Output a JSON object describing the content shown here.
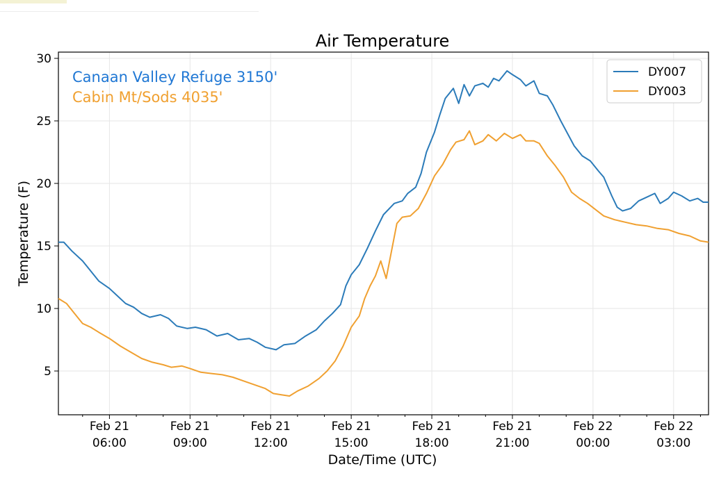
{
  "chart_data": {
    "type": "line",
    "title": "Air Temperature",
    "xlabel": "Date/Time (UTC)",
    "ylabel": "Temperature (F)",
    "ylim": [
      1.5,
      30.5
    ],
    "xlim_hours": [
      4.1,
      28.3
    ],
    "x_unit": "hours since Feb 21 00:00 UTC",
    "y_ticks": [
      5,
      10,
      15,
      20,
      25,
      30
    ],
    "x_ticks": [
      {
        "h": 6,
        "date": "Feb 21",
        "time": "06:00"
      },
      {
        "h": 9,
        "date": "Feb 21",
        "time": "09:00"
      },
      {
        "h": 12,
        "date": "Feb 21",
        "time": "12:00"
      },
      {
        "h": 15,
        "date": "Feb 21",
        "time": "15:00"
      },
      {
        "h": 18,
        "date": "Feb 21",
        "time": "18:00"
      },
      {
        "h": 21,
        "date": "Feb 21",
        "time": "21:00"
      },
      {
        "h": 24,
        "date": "Feb 22",
        "time": "00:00"
      },
      {
        "h": 27,
        "date": "Feb 22",
        "time": "03:00"
      }
    ],
    "minor_tick_step_hours": 1,
    "grid": true,
    "legend_position": "top-right",
    "annotations": [
      {
        "text": "Canaan Valley Refuge 3150'",
        "color": "#1f77d4"
      },
      {
        "text": "Cabin Mt/Sods 4035'",
        "color": "#f0a030"
      }
    ],
    "series": [
      {
        "name": "DY007",
        "color": "#2b7bb9",
        "points": [
          [
            4.1,
            15.3
          ],
          [
            4.3,
            15.3
          ],
          [
            4.6,
            14.6
          ],
          [
            5.0,
            13.8
          ],
          [
            5.3,
            13.0
          ],
          [
            5.6,
            12.2
          ],
          [
            6.0,
            11.6
          ],
          [
            6.3,
            11.0
          ],
          [
            6.6,
            10.4
          ],
          [
            6.9,
            10.1
          ],
          [
            7.2,
            9.6
          ],
          [
            7.5,
            9.3
          ],
          [
            7.9,
            9.5
          ],
          [
            8.2,
            9.2
          ],
          [
            8.5,
            8.6
          ],
          [
            8.9,
            8.4
          ],
          [
            9.2,
            8.5
          ],
          [
            9.6,
            8.3
          ],
          [
            10.0,
            7.8
          ],
          [
            10.4,
            8.0
          ],
          [
            10.8,
            7.5
          ],
          [
            11.2,
            7.6
          ],
          [
            11.5,
            7.3
          ],
          [
            11.8,
            6.9
          ],
          [
            12.2,
            6.7
          ],
          [
            12.5,
            7.1
          ],
          [
            12.9,
            7.2
          ],
          [
            13.3,
            7.8
          ],
          [
            13.7,
            8.3
          ],
          [
            14.0,
            9.0
          ],
          [
            14.3,
            9.6
          ],
          [
            14.6,
            10.3
          ],
          [
            14.8,
            11.8
          ],
          [
            15.0,
            12.7
          ],
          [
            15.3,
            13.5
          ],
          [
            15.6,
            14.8
          ],
          [
            15.9,
            16.2
          ],
          [
            16.2,
            17.5
          ],
          [
            16.6,
            18.4
          ],
          [
            16.9,
            18.6
          ],
          [
            17.1,
            19.2
          ],
          [
            17.4,
            19.7
          ],
          [
            17.6,
            20.8
          ],
          [
            17.8,
            22.5
          ],
          [
            18.1,
            24.1
          ],
          [
            18.3,
            25.5
          ],
          [
            18.5,
            26.8
          ],
          [
            18.8,
            27.6
          ],
          [
            19.0,
            26.4
          ],
          [
            19.2,
            27.9
          ],
          [
            19.4,
            27.0
          ],
          [
            19.6,
            27.8
          ],
          [
            19.9,
            28.0
          ],
          [
            20.1,
            27.7
          ],
          [
            20.3,
            28.4
          ],
          [
            20.5,
            28.2
          ],
          [
            20.8,
            29.0
          ],
          [
            21.0,
            28.7
          ],
          [
            21.3,
            28.3
          ],
          [
            21.5,
            27.8
          ],
          [
            21.8,
            28.2
          ],
          [
            22.0,
            27.2
          ],
          [
            22.3,
            27.0
          ],
          [
            22.5,
            26.3
          ],
          [
            22.8,
            25.0
          ],
          [
            23.1,
            23.8
          ],
          [
            23.3,
            23.0
          ],
          [
            23.6,
            22.2
          ],
          [
            23.9,
            21.8
          ],
          [
            24.2,
            21.0
          ],
          [
            24.4,
            20.5
          ],
          [
            24.7,
            19.0
          ],
          [
            24.9,
            18.1
          ],
          [
            25.1,
            17.8
          ],
          [
            25.4,
            18.0
          ],
          [
            25.7,
            18.6
          ],
          [
            26.0,
            18.9
          ],
          [
            26.3,
            19.2
          ],
          [
            26.5,
            18.4
          ],
          [
            26.8,
            18.8
          ],
          [
            27.0,
            19.3
          ],
          [
            27.3,
            19.0
          ],
          [
            27.6,
            18.6
          ],
          [
            27.9,
            18.8
          ],
          [
            28.1,
            18.5
          ],
          [
            28.3,
            18.5
          ]
        ]
      },
      {
        "name": "DY003",
        "color": "#f0a030",
        "points": [
          [
            4.1,
            10.8
          ],
          [
            4.4,
            10.4
          ],
          [
            4.7,
            9.6
          ],
          [
            5.0,
            8.8
          ],
          [
            5.3,
            8.5
          ],
          [
            5.6,
            8.1
          ],
          [
            6.0,
            7.6
          ],
          [
            6.4,
            7.0
          ],
          [
            6.8,
            6.5
          ],
          [
            7.2,
            6.0
          ],
          [
            7.6,
            5.7
          ],
          [
            8.0,
            5.5
          ],
          [
            8.3,
            5.3
          ],
          [
            8.7,
            5.4
          ],
          [
            9.0,
            5.2
          ],
          [
            9.4,
            4.9
          ],
          [
            9.8,
            4.8
          ],
          [
            10.2,
            4.7
          ],
          [
            10.6,
            4.5
          ],
          [
            11.0,
            4.2
          ],
          [
            11.4,
            3.9
          ],
          [
            11.8,
            3.6
          ],
          [
            12.1,
            3.2
          ],
          [
            12.4,
            3.1
          ],
          [
            12.7,
            3.0
          ],
          [
            13.0,
            3.4
          ],
          [
            13.4,
            3.8
          ],
          [
            13.8,
            4.4
          ],
          [
            14.1,
            5.0
          ],
          [
            14.4,
            5.8
          ],
          [
            14.7,
            7.0
          ],
          [
            15.0,
            8.5
          ],
          [
            15.3,
            9.4
          ],
          [
            15.5,
            10.8
          ],
          [
            15.7,
            11.8
          ],
          [
            15.9,
            12.6
          ],
          [
            16.1,
            13.8
          ],
          [
            16.3,
            12.4
          ],
          [
            16.5,
            14.6
          ],
          [
            16.7,
            16.8
          ],
          [
            16.9,
            17.3
          ],
          [
            17.2,
            17.4
          ],
          [
            17.5,
            18.0
          ],
          [
            17.8,
            19.2
          ],
          [
            18.1,
            20.6
          ],
          [
            18.4,
            21.5
          ],
          [
            18.7,
            22.7
          ],
          [
            18.9,
            23.3
          ],
          [
            19.2,
            23.5
          ],
          [
            19.4,
            24.2
          ],
          [
            19.6,
            23.1
          ],
          [
            19.9,
            23.4
          ],
          [
            20.1,
            23.9
          ],
          [
            20.4,
            23.4
          ],
          [
            20.7,
            24.0
          ],
          [
            21.0,
            23.6
          ],
          [
            21.3,
            23.9
          ],
          [
            21.5,
            23.4
          ],
          [
            21.8,
            23.4
          ],
          [
            22.0,
            23.2
          ],
          [
            22.3,
            22.2
          ],
          [
            22.6,
            21.4
          ],
          [
            22.9,
            20.5
          ],
          [
            23.2,
            19.3
          ],
          [
            23.5,
            18.8
          ],
          [
            23.8,
            18.4
          ],
          [
            24.1,
            17.9
          ],
          [
            24.4,
            17.4
          ],
          [
            24.8,
            17.1
          ],
          [
            25.2,
            16.9
          ],
          [
            25.6,
            16.7
          ],
          [
            26.0,
            16.6
          ],
          [
            26.4,
            16.4
          ],
          [
            26.8,
            16.3
          ],
          [
            27.2,
            16.0
          ],
          [
            27.6,
            15.8
          ],
          [
            28.0,
            15.4
          ],
          [
            28.3,
            15.3
          ]
        ]
      }
    ]
  }
}
